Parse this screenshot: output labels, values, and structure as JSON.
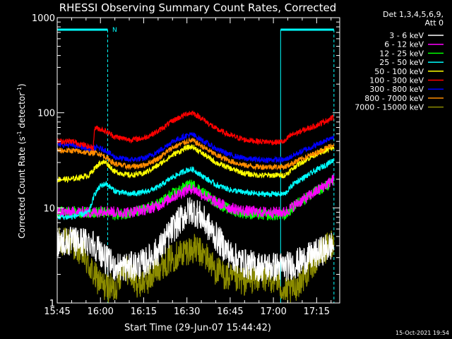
{
  "chart_data": {
    "type": "line",
    "title": "RHESSI Observing Summary Count Rates, Corrected",
    "xlabel": "Start Time (29-Jun-07 15:44:42)",
    "ylabel": "Corrected Count Rate (s",
    "ylabel_sup1": "-1",
    "ylabel_mid": " detector",
    "ylabel_sup2": "-1",
    "ylabel_end": ")",
    "yscale": "log",
    "ylim": [
      1,
      1000
    ],
    "xlim_minutes": [
      0,
      98
    ],
    "x_ticks": [
      {
        "label": "15:45",
        "min": 0
      },
      {
        "label": "16:00",
        "min": 15
      },
      {
        "label": "16:15",
        "min": 30
      },
      {
        "label": "16:30",
        "min": 45
      },
      {
        "label": "16:45",
        "min": 60
      },
      {
        "label": "17:00",
        "min": 75
      },
      {
        "label": "17:15",
        "min": 90
      }
    ],
    "y_ticks": [
      {
        "label": "1",
        "v": 1
      },
      {
        "label": "10",
        "v": 10
      },
      {
        "label": "100",
        "v": 100
      },
      {
        "label": "1000",
        "v": 1000
      }
    ],
    "legend_header": [
      "Det 1,3,4,5,6,9,",
      "Att 0"
    ],
    "legend_placement": "top-right outside",
    "timestamp": "15-Oct-2021 19:54",
    "night_marker": "N",
    "night_intervals": [
      [
        0,
        17.5
      ],
      [
        77.5,
        96
      ]
    ],
    "series": [
      {
        "name": "3 - 6 keV",
        "color": "#ffffff",
        "points": [
          [
            0,
            4.4
          ],
          [
            5,
            4.4
          ],
          [
            12,
            4.4
          ],
          [
            15,
            3.5
          ],
          [
            17,
            2.8
          ],
          [
            20,
            2.4
          ],
          [
            25,
            2.4
          ],
          [
            30,
            2.6
          ],
          [
            35,
            3.5
          ],
          [
            40,
            6.0
          ],
          [
            45,
            9.0
          ],
          [
            47,
            9.5
          ],
          [
            50,
            8.0
          ],
          [
            55,
            5.0
          ],
          [
            60,
            3.2
          ],
          [
            65,
            2.6
          ],
          [
            70,
            2.4
          ],
          [
            75,
            2.4
          ],
          [
            79,
            2.4
          ],
          [
            83,
            2.6
          ],
          [
            90,
            3.3
          ],
          [
            96,
            4.1
          ]
        ]
      },
      {
        "name": "6 - 12 keV",
        "color": "#ff00ff",
        "points": [
          [
            0,
            9
          ],
          [
            14,
            9
          ],
          [
            16,
            9.5
          ],
          [
            20,
            9.0
          ],
          [
            25,
            9.0
          ],
          [
            30,
            9.5
          ],
          [
            35,
            10.5
          ],
          [
            40,
            13
          ],
          [
            45,
            15.5
          ],
          [
            47,
            16
          ],
          [
            50,
            14
          ],
          [
            55,
            11.5
          ],
          [
            60,
            10
          ],
          [
            65,
            9.3
          ],
          [
            70,
            9.0
          ],
          [
            76,
            9.0
          ],
          [
            79,
            9.0
          ],
          [
            83,
            11
          ],
          [
            90,
            15
          ],
          [
            96,
            20
          ]
        ]
      },
      {
        "name": "12 - 25 keV",
        "color": "#00ff00",
        "points": [
          [
            0,
            9
          ],
          [
            14,
            9
          ],
          [
            16,
            9
          ],
          [
            20,
            8.5
          ],
          [
            25,
            8.8
          ],
          [
            30,
            9.5
          ],
          [
            35,
            11
          ],
          [
            40,
            14
          ],
          [
            45,
            17
          ],
          [
            47,
            17.5
          ],
          [
            50,
            15
          ],
          [
            55,
            11.5
          ],
          [
            60,
            9.5
          ],
          [
            65,
            8.8
          ],
          [
            70,
            8.5
          ],
          [
            76,
            8.4
          ],
          [
            79,
            8.4
          ],
          [
            83,
            11
          ],
          [
            90,
            15
          ],
          [
            96,
            19
          ]
        ]
      },
      {
        "name": "25 - 50 keV",
        "color": "#00ffff",
        "points": [
          [
            0,
            8.0
          ],
          [
            5,
            8.0
          ],
          [
            11,
            9
          ],
          [
            13,
            14
          ],
          [
            15,
            17
          ],
          [
            17,
            18
          ],
          [
            20,
            15
          ],
          [
            25,
            14.0
          ],
          [
            30,
            14.5
          ],
          [
            35,
            16.5
          ],
          [
            40,
            21
          ],
          [
            45,
            25
          ],
          [
            47,
            25.5
          ],
          [
            50,
            22
          ],
          [
            55,
            17.5
          ],
          [
            60,
            15.5
          ],
          [
            65,
            14.5
          ],
          [
            70,
            14
          ],
          [
            76,
            14
          ],
          [
            79,
            14
          ],
          [
            82,
            18
          ],
          [
            90,
            25
          ],
          [
            96,
            32
          ]
        ]
      },
      {
        "name": "50 - 100 keV",
        "color": "#ffff00",
        "points": [
          [
            0,
            20
          ],
          [
            5,
            20
          ],
          [
            11,
            22
          ],
          [
            13,
            26
          ],
          [
            15,
            30
          ],
          [
            17,
            30
          ],
          [
            20,
            24
          ],
          [
            25,
            22
          ],
          [
            30,
            23
          ],
          [
            35,
            28
          ],
          [
            40,
            36
          ],
          [
            45,
            43
          ],
          [
            47,
            44
          ],
          [
            50,
            38
          ],
          [
            55,
            30
          ],
          [
            60,
            26
          ],
          [
            65,
            23
          ],
          [
            70,
            22
          ],
          [
            76,
            22
          ],
          [
            79,
            22
          ],
          [
            83,
            28
          ],
          [
            90,
            37
          ],
          [
            96,
            43
          ]
        ]
      },
      {
        "name": "100 - 300 keV",
        "color": "#ff0000",
        "points": [
          [
            0,
            50
          ],
          [
            5,
            50
          ],
          [
            11,
            44
          ],
          [
            12.5,
            43
          ],
          [
            13,
            70
          ],
          [
            16,
            66
          ],
          [
            20,
            56
          ],
          [
            25,
            52
          ],
          [
            30,
            54
          ],
          [
            35,
            64
          ],
          [
            40,
            82
          ],
          [
            45,
            98
          ],
          [
            47,
            100
          ],
          [
            50,
            88
          ],
          [
            55,
            68
          ],
          [
            60,
            58
          ],
          [
            65,
            52
          ],
          [
            70,
            50
          ],
          [
            76,
            49
          ],
          [
            79,
            50
          ],
          [
            81,
            58
          ],
          [
            90,
            74
          ],
          [
            96,
            90
          ]
        ]
      },
      {
        "name": "300 - 800 keV",
        "color": "#0000ff",
        "points": [
          [
            0,
            46
          ],
          [
            5,
            46
          ],
          [
            11,
            42
          ],
          [
            14,
            43
          ],
          [
            17,
            40
          ],
          [
            20,
            34
          ],
          [
            25,
            32
          ],
          [
            30,
            33
          ],
          [
            35,
            39
          ],
          [
            40,
            50
          ],
          [
            45,
            58
          ],
          [
            47,
            59
          ],
          [
            50,
            52
          ],
          [
            55,
            42
          ],
          [
            60,
            36
          ],
          [
            65,
            33
          ],
          [
            70,
            32
          ],
          [
            76,
            32
          ],
          [
            79,
            32
          ],
          [
            83,
            37
          ],
          [
            90,
            46
          ],
          [
            96,
            57
          ]
        ]
      },
      {
        "name": "800 - 7000 keV",
        "color": "#ff8c00",
        "points": [
          [
            0,
            40
          ],
          [
            5,
            40
          ],
          [
            11,
            38
          ],
          [
            14,
            38
          ],
          [
            17,
            34
          ],
          [
            20,
            29
          ],
          [
            25,
            27
          ],
          [
            30,
            28
          ],
          [
            35,
            33
          ],
          [
            40,
            43
          ],
          [
            45,
            50
          ],
          [
            47,
            51
          ],
          [
            50,
            45
          ],
          [
            55,
            36
          ],
          [
            60,
            31
          ],
          [
            65,
            28
          ],
          [
            70,
            27
          ],
          [
            76,
            27
          ],
          [
            79,
            27
          ],
          [
            83,
            31
          ],
          [
            90,
            38
          ],
          [
            96,
            47
          ]
        ]
      },
      {
        "name": "7000 - 15000 keV",
        "color": "#8b8b00",
        "points": [
          [
            0,
            4.4
          ],
          [
            5,
            4.4
          ],
          [
            9,
            3.2
          ],
          [
            13,
            1.9
          ],
          [
            16,
            1.5
          ],
          [
            20,
            1.4
          ],
          [
            23,
            2.5
          ],
          [
            28,
            1.6
          ],
          [
            32,
            1.8
          ],
          [
            35,
            2.4
          ],
          [
            40,
            3.0
          ],
          [
            45,
            3.6
          ],
          [
            48,
            3.7
          ],
          [
            52,
            3.0
          ],
          [
            55,
            2.2
          ],
          [
            60,
            1.8
          ],
          [
            65,
            1.7
          ],
          [
            70,
            1.9
          ],
          [
            76,
            1.8
          ],
          [
            79,
            1.3
          ],
          [
            82,
            1.4
          ],
          [
            86,
            2.0
          ],
          [
            90,
            3.0
          ],
          [
            96,
            4.5
          ]
        ]
      }
    ]
  }
}
